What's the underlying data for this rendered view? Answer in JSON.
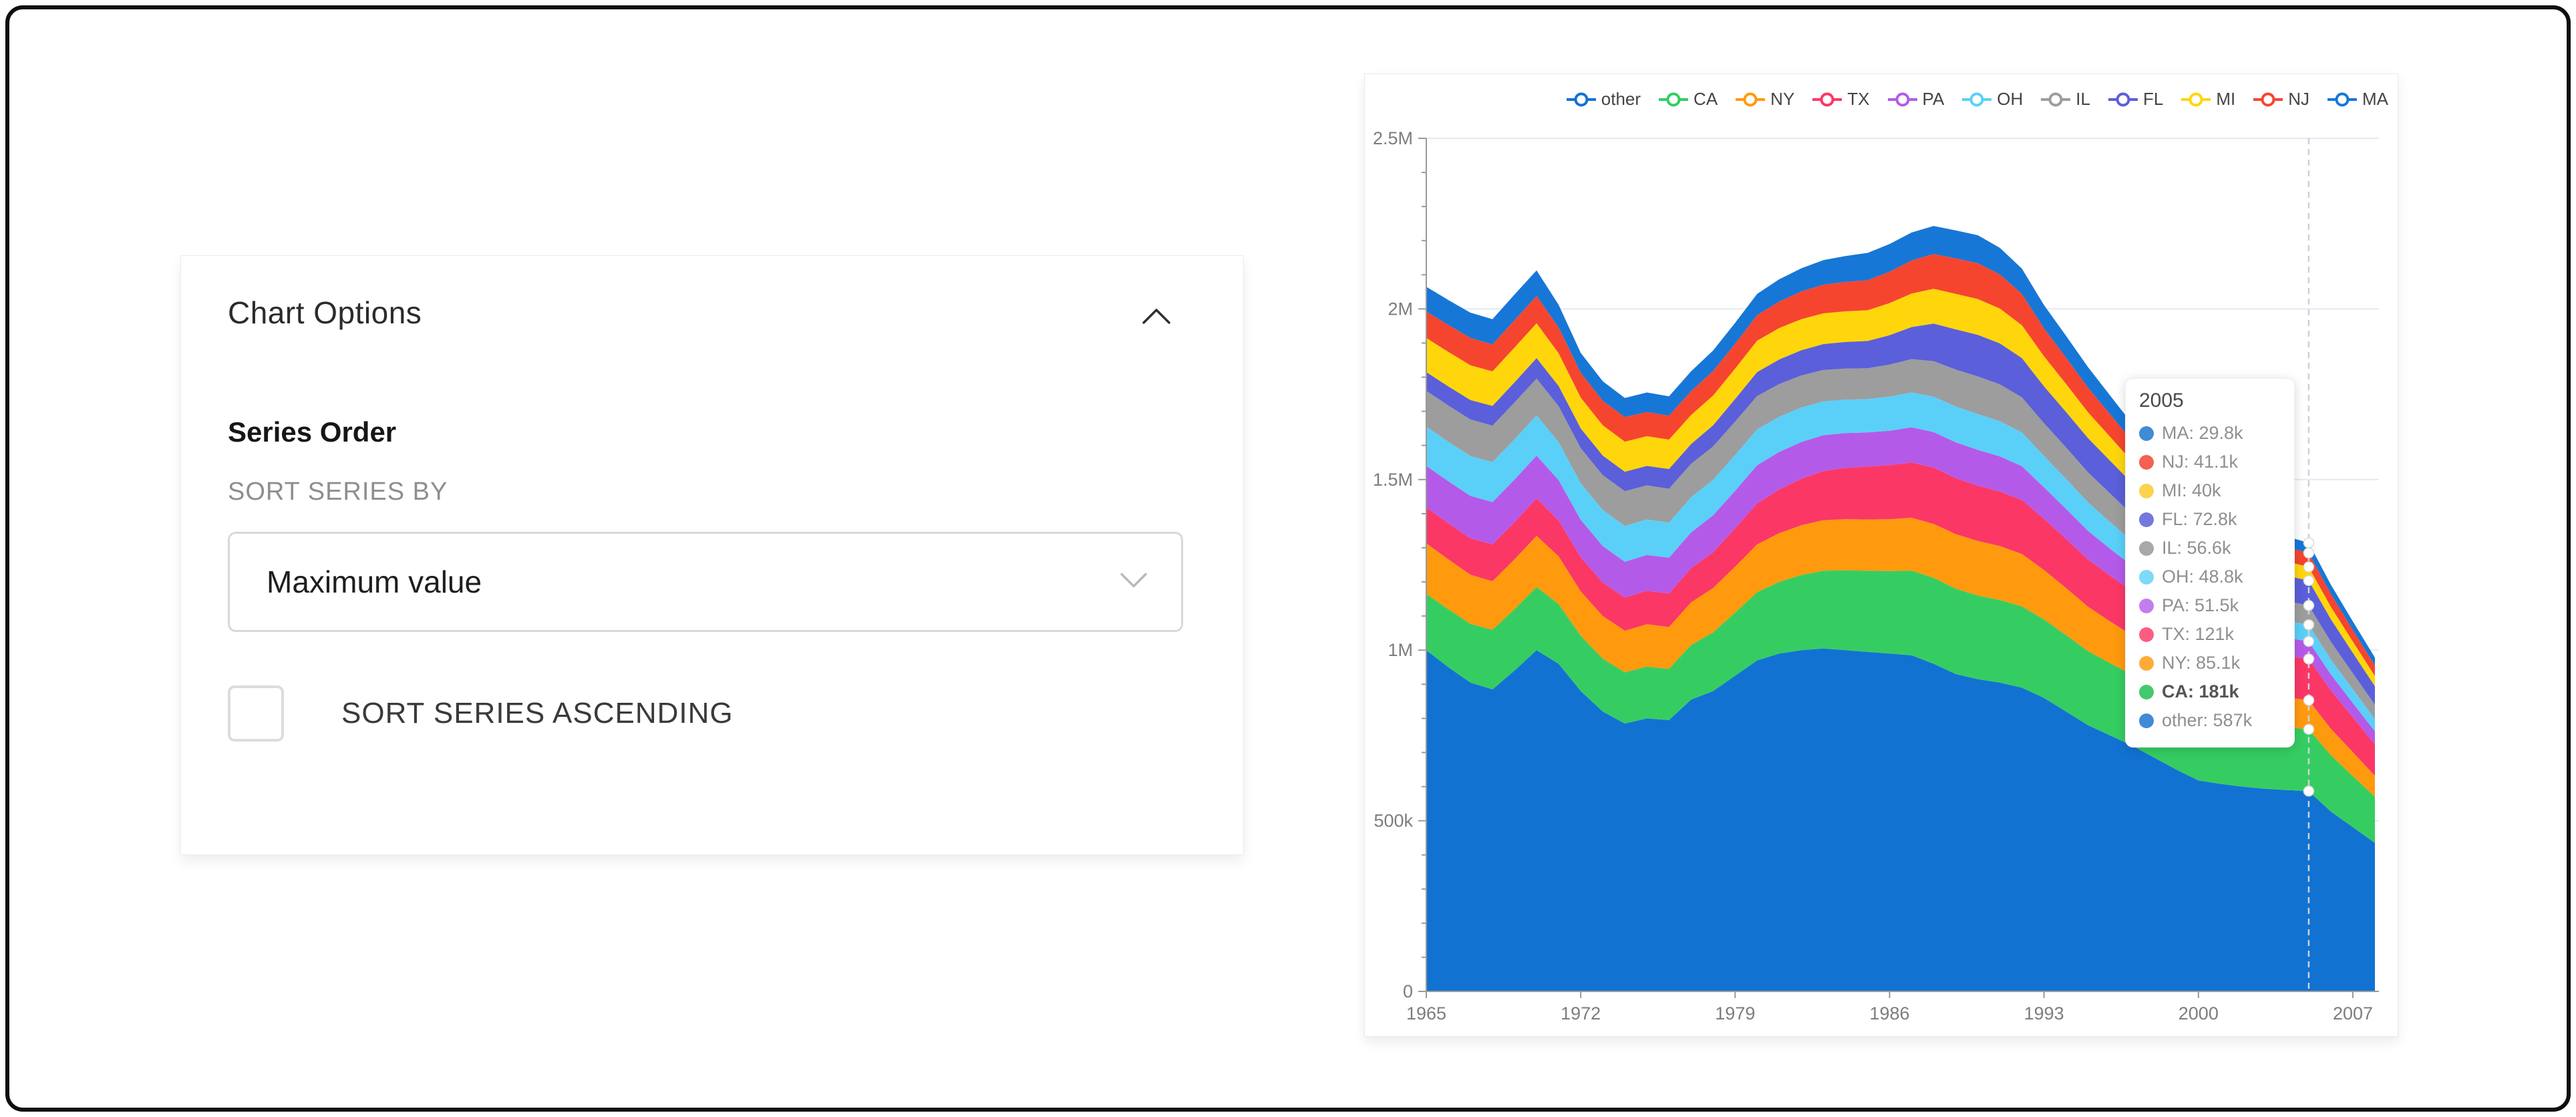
{
  "options_panel": {
    "title": "Chart Options",
    "collapse_icon": "chevron-up",
    "section_title": "Series Order",
    "sort_by_label": "SORT SERIES BY",
    "sort_by_value": "Maximum value",
    "ascending_label": "SORT SERIES ASCENDING",
    "ascending_checked": false
  },
  "chart": {
    "legend_position": "top-right",
    "y_axis": {
      "tick_labels": [
        {
          "v": 0,
          "label": "0"
        },
        {
          "v": 500,
          "label": "500k"
        },
        {
          "v": 1000,
          "label": "1M"
        },
        {
          "v": 1500,
          "label": "1.5M"
        },
        {
          "v": 2000,
          "label": "2M"
        },
        {
          "v": 2500,
          "label": "2.5M"
        }
      ],
      "minor_tick_step": 100,
      "grid_values": [
        500,
        1000,
        1500,
        2000,
        2500
      ]
    },
    "x_axis": {
      "tick_years": [
        1965,
        1972,
        1979,
        1986,
        1993,
        2000,
        2007
      ]
    },
    "hover": {
      "year": 2005,
      "dashed_line": true,
      "dot_color": "#ffffff"
    },
    "tooltip": {
      "title": "2005",
      "rows": [
        {
          "series": "MA",
          "value": "29.8k",
          "color": "#3f8bd6",
          "bold": false
        },
        {
          "series": "NJ",
          "value": "41.1k",
          "color": "#f4614f",
          "bold": false
        },
        {
          "series": "MI",
          "value": "40k",
          "color": "#fbd34d",
          "bold": false
        },
        {
          "series": "FL",
          "value": "72.8k",
          "color": "#7477dd",
          "bold": false
        },
        {
          "series": "IL",
          "value": "56.6k",
          "color": "#a8a8a8",
          "bold": false
        },
        {
          "series": "OH",
          "value": "48.8k",
          "color": "#7fd9f9",
          "bold": false
        },
        {
          "series": "PA",
          "value": "51.5k",
          "color": "#c37ded",
          "bold": false
        },
        {
          "series": "TX",
          "value": "121k",
          "color": "#fb5d82",
          "bold": false
        },
        {
          "series": "NY",
          "value": "85.1k",
          "color": "#ffab3a",
          "bold": false
        },
        {
          "series": "CA",
          "value": "181k",
          "color": "#43c96e",
          "bold": true
        },
        {
          "series": "other",
          "value": "587k",
          "color": "#3f8bd6",
          "bold": false
        }
      ]
    }
  },
  "chart_data": {
    "type": "area",
    "stacked": true,
    "values_unit": "thousands",
    "ylim_thousands": [
      0,
      2500
    ],
    "x": [
      1965,
      1966,
      1967,
      1968,
      1969,
      1970,
      1971,
      1972,
      1973,
      1974,
      1975,
      1976,
      1977,
      1978,
      1979,
      1980,
      1981,
      1982,
      1983,
      1984,
      1985,
      1986,
      1987,
      1988,
      1989,
      1990,
      1991,
      1992,
      1993,
      1994,
      1995,
      1996,
      1997,
      1998,
      1999,
      2000,
      2001,
      2002,
      2003,
      2004,
      2005,
      2006,
      2007,
      2008
    ],
    "series": [
      {
        "name": "other",
        "color": "#1272d2",
        "values": [
          1000,
          950,
          905,
          885,
          940,
          1000,
          960,
          880,
          820,
          785,
          800,
          795,
          855,
          880,
          925,
          970,
          990,
          1000,
          1005,
          1000,
          995,
          990,
          985,
          960,
          930,
          915,
          905,
          890,
          860,
          820,
          780,
          750,
          720,
          685,
          650,
          618,
          608,
          600,
          594,
          590,
          587,
          527,
          481,
          435
        ]
      },
      {
        "name": "CA",
        "color": "#35cd62",
        "values": [
          165,
          170,
          172,
          175,
          180,
          185,
          175,
          162,
          155,
          150,
          152,
          150,
          160,
          172,
          185,
          200,
          210,
          220,
          228,
          234,
          238,
          242,
          248,
          252,
          250,
          245,
          242,
          238,
          230,
          224,
          217,
          212,
          208,
          205,
          202,
          200,
          196,
          192,
          188,
          184,
          181,
          165,
          150,
          135
        ]
      },
      {
        "name": "NY",
        "color": "#ff9a0e",
        "values": [
          148,
          146,
          144,
          142,
          146,
          150,
          140,
          130,
          125,
          122,
          124,
          123,
          125,
          130,
          135,
          140,
          143,
          146,
          148,
          150,
          150,
          152,
          155,
          158,
          160,
          160,
          158,
          154,
          145,
          138,
          130,
          122,
          115,
          108,
          103,
          100,
          97,
          94,
          91,
          88,
          85.1,
          78,
          70,
          62
        ]
      },
      {
        "name": "TX",
        "color": "#fb3766",
        "values": [
          105,
          106,
          107,
          108,
          109,
          110,
          105,
          100,
          98,
          97,
          98,
          98,
          100,
          105,
          112,
          120,
          128,
          136,
          144,
          150,
          155,
          158,
          162,
          165,
          164,
          162,
          160,
          158,
          150,
          144,
          138,
          134,
          130,
          128,
          126,
          125,
          124,
          123,
          122,
          121.5,
          121,
          112,
          102,
          92
        ]
      },
      {
        "name": "PA",
        "color": "#b45ae9",
        "values": [
          122,
          123,
          124,
          124,
          125,
          125,
          118,
          110,
          107,
          105,
          105,
          105,
          105,
          108,
          110,
          112,
          110,
          108,
          105,
          102,
          100,
          101,
          103,
          104,
          105,
          105,
          103,
          99,
          92,
          88,
          84,
          79,
          74,
          69,
          65,
          62,
          60,
          57,
          55,
          53,
          51.5,
          47,
          42,
          38
        ]
      },
      {
        "name": "OH",
        "color": "#5ad0f8",
        "values": [
          115,
          116,
          117,
          117,
          118,
          118,
          112,
          107,
          106,
          105,
          104,
          103,
          103,
          104,
          105,
          105,
          103,
          101,
          99,
          98,
          98,
          100,
          102,
          104,
          105,
          105,
          103,
          99,
          92,
          88,
          84,
          78,
          72,
          66,
          61,
          58,
          56,
          54,
          52,
          50,
          48.8,
          44,
          40,
          36
        ]
      },
      {
        "name": "IL",
        "color": "#9d9d9d",
        "values": [
          105,
          106,
          107,
          107,
          108,
          108,
          105,
          103,
          102,
          102,
          100,
          99,
          98,
          98,
          98,
          98,
          96,
          94,
          92,
          91,
          90,
          94,
          98,
          104,
          108,
          110,
          108,
          103,
          96,
          92,
          88,
          84,
          78,
          73,
          69,
          65,
          63,
          61,
          59,
          57.5,
          56.6,
          52,
          47,
          42
        ]
      },
      {
        "name": "FL",
        "color": "#5b5fd9",
        "values": [
          55,
          56,
          57,
          58,
          59,
          60,
          59,
          58,
          57,
          57,
          57,
          58,
          58,
          62,
          66,
          70,
          72,
          74,
          76,
          78,
          80,
          86,
          94,
          110,
          118,
          122,
          120,
          115,
          108,
          104,
          100,
          96,
          92,
          88,
          85,
          82,
          80,
          78,
          76,
          74,
          72.8,
          66,
          60,
          54
        ]
      },
      {
        "name": "MI",
        "color": "#ffd60b",
        "values": [
          100,
          101,
          102,
          101,
          102,
          102,
          96,
          90,
          89,
          88,
          87,
          86,
          85,
          87,
          89,
          92,
          92,
          91,
          90,
          90,
          90,
          94,
          98,
          102,
          104,
          105,
          102,
          96,
          88,
          82,
          76,
          70,
          64,
          58,
          53,
          50,
          48,
          46,
          44,
          42,
          40,
          36,
          33,
          30
        ]
      },
      {
        "name": "NJ",
        "color": "#f6452f",
        "values": [
          78,
          79,
          80,
          79,
          80,
          80,
          76,
          73,
          72,
          72,
          71,
          70,
          70,
          72,
          73,
          75,
          78,
          81,
          84,
          86,
          88,
          92,
          97,
          102,
          104,
          105,
          100,
          92,
          82,
          77,
          72,
          66,
          60,
          55,
          51,
          48,
          46,
          44.5,
          43,
          42,
          41.1,
          38,
          34,
          31
        ]
      },
      {
        "name": "MA",
        "color": "#1777d6",
        "values": [
          72,
          73,
          74,
          74,
          75,
          75,
          66,
          58,
          57,
          56,
          57,
          57,
          58,
          60,
          61,
          62,
          65,
          68,
          72,
          76,
          80,
          81,
          82,
          82,
          82,
          82,
          78,
          74,
          68,
          64,
          60,
          55,
          50,
          45,
          41,
          38,
          36,
          34,
          32,
          31,
          29.8,
          27,
          25,
          23
        ]
      }
    ],
    "legend_order": [
      "other",
      "CA",
      "NY",
      "TX",
      "PA",
      "OH",
      "IL",
      "FL",
      "MI",
      "NJ",
      "MA"
    ]
  }
}
